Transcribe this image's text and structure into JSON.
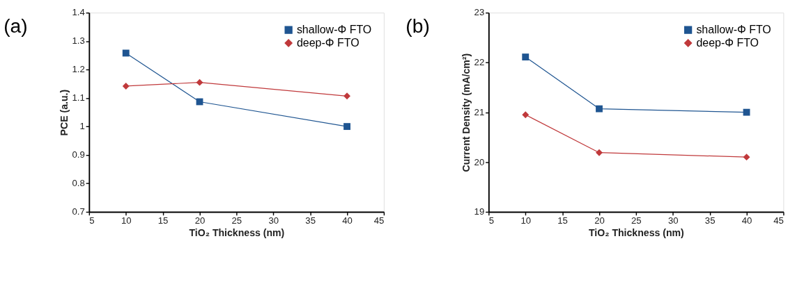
{
  "chart_data": [
    {
      "type": "line",
      "title": "(a)",
      "xlabel": "TiO₂ Thickness (nm)",
      "ylabel": "PCE (a.u.)",
      "x": [
        10,
        20,
        40
      ],
      "series": [
        {
          "name": "shallow-Φ FTO",
          "color": "#1f5591",
          "marker": "square",
          "values": [
            1.258,
            1.087,
            1.0
          ]
        },
        {
          "name": "deep-Φ FTO",
          "color": "#c0393b",
          "marker": "diamond",
          "values": [
            1.142,
            1.155,
            1.107
          ]
        }
      ],
      "xlim": [
        5,
        45
      ],
      "xticks": [
        5,
        10,
        15,
        20,
        25,
        30,
        35,
        40,
        45
      ],
      "ylim": [
        0.7,
        1.4
      ],
      "yticks": [
        0.7,
        0.8,
        0.9,
        1,
        1.1,
        1.2,
        1.3,
        1.4
      ],
      "grid": false,
      "legend": "top right",
      "line_style": "solid"
    },
    {
      "type": "line",
      "title": "(b)",
      "xlabel": "TiO₂ Thickness (nm)",
      "ylabel": "Current Density (mA/cm²)",
      "x": [
        10,
        20,
        40
      ],
      "series": [
        {
          "name": "shallow-Φ FTO",
          "color": "#1f5591",
          "marker": "square",
          "values": [
            22.11,
            21.07,
            21.0
          ]
        },
        {
          "name": "deep-Φ FTO",
          "color": "#c0393b",
          "marker": "diamond",
          "values": [
            20.95,
            20.19,
            20.1
          ]
        }
      ],
      "xlim": [
        5,
        45
      ],
      "xticks": [
        5,
        10,
        15,
        20,
        25,
        30,
        35,
        40,
        45
      ],
      "ylim": [
        19,
        23
      ],
      "yticks": [
        19,
        20,
        21,
        22,
        23
      ],
      "grid": false,
      "legend": "top right",
      "line_style": "solid"
    }
  ]
}
